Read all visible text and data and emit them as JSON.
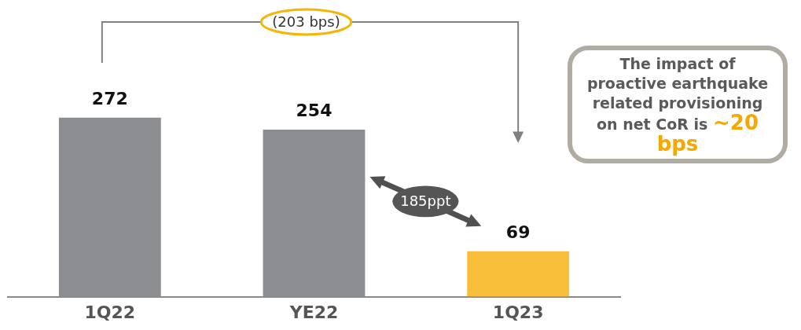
{
  "chart_data": {
    "type": "bar",
    "categories": [
      "1Q22",
      "YE22",
      "1Q23"
    ],
    "values": [
      272,
      254,
      69
    ],
    "colors": [
      "#8c8d90",
      "#8c8d90",
      "#f9bf3b"
    ],
    "data_labels": true,
    "grid": false,
    "legend": false,
    "tick_labels": "x",
    "annotations": [
      "(203 bps)",
      "185ppt",
      "The impact of proactive earthquake related provisioning on net CoR is",
      "~20 bps"
    ]
  }
}
